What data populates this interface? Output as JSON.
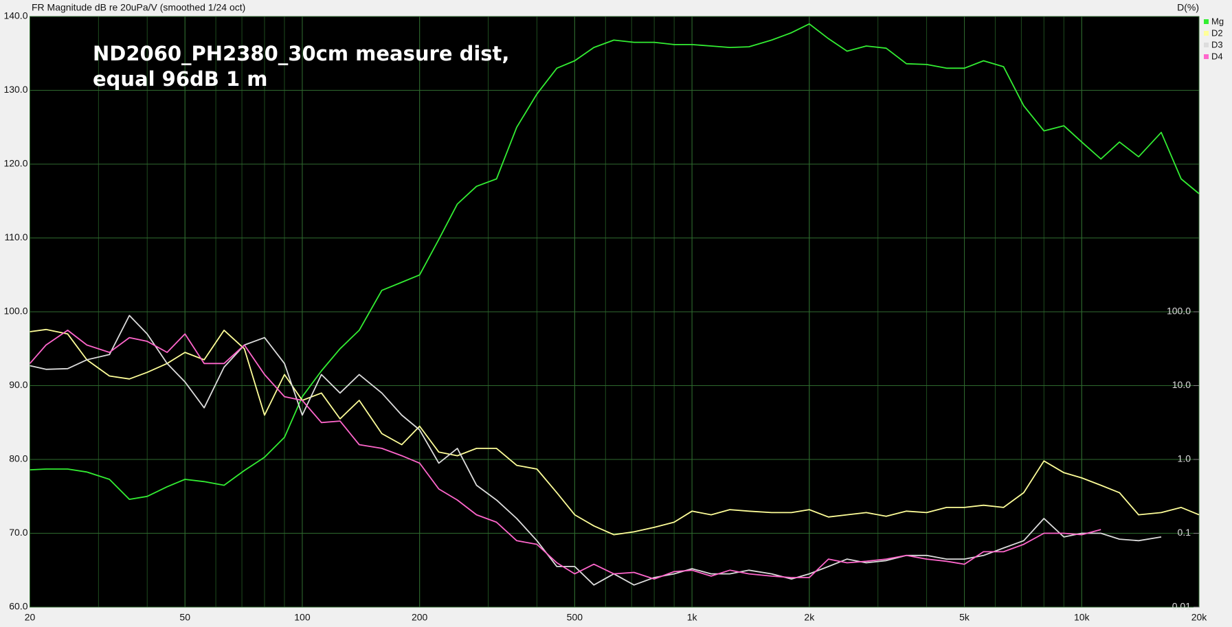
{
  "chart_data": {
    "type": "line",
    "ylabel": "FR Magnitude dB re 20uPa/V (smoothed 1/24 oct)",
    "y2label": "D(%)",
    "annotation": [
      "ND2060_PH2380_30cm measure dist,",
      "equal 96dB 1 m"
    ],
    "xscale": "log",
    "xlim": [
      20,
      20000
    ],
    "xticks": [
      20,
      50,
      100,
      200,
      500,
      {
        "value": 1000,
        "label": "1k"
      },
      {
        "value": 2000,
        "label": "2k"
      },
      {
        "value": 5000,
        "label": "5k"
      },
      {
        "value": 10000,
        "label": "10k"
      },
      {
        "value": 20000,
        "label": "20k"
      }
    ],
    "ylim": [
      60,
      140
    ],
    "yticks": [
      {
        "value": 60,
        "label": "60.0"
      },
      {
        "value": 70,
        "label": "70.0"
      },
      {
        "value": 80,
        "label": "80.0"
      },
      {
        "value": 90,
        "label": "90.0"
      },
      {
        "value": 100,
        "label": "100.0"
      },
      {
        "value": 110,
        "label": "110.0"
      },
      {
        "value": 120,
        "label": "120.0"
      },
      {
        "value": 130,
        "label": "130.0"
      },
      {
        "value": 140,
        "label": "140.0"
      }
    ],
    "y2scale": "log",
    "y2lim": [
      0.01,
      1000000
    ],
    "y2ticks": [
      0.01,
      0.1,
      {
        "value": 1,
        "label": "1.0"
      },
      {
        "value": 10,
        "label": "10.0"
      },
      {
        "value": 100,
        "label": "100.0"
      }
    ],
    "grid": true,
    "legend": "top-right",
    "x": [
      20,
      22,
      25,
      28,
      32,
      36,
      40,
      45,
      50,
      56,
      63,
      71,
      80,
      90,
      100,
      112,
      125,
      140,
      160,
      180,
      200,
      224,
      250,
      280,
      315,
      355,
      400,
      450,
      500,
      560,
      630,
      710,
      800,
      900,
      1000,
      1120,
      1250,
      1400,
      1600,
      1800,
      2000,
      2240,
      2500,
      2800,
      3150,
      3550,
      4000,
      4500,
      5000,
      5600,
      6300,
      7100,
      8000,
      9000,
      10000,
      11200,
      12500,
      14000,
      16000,
      18000,
      20000
    ],
    "series": [
      {
        "name": "Mg",
        "color": "#33ee33",
        "values": [
          78.6,
          78.7,
          78.7,
          78.3,
          77.3,
          74.6,
          75,
          76.3,
          77.3,
          77,
          76.5,
          78.5,
          80.3,
          83,
          88.5,
          92,
          95,
          97.5,
          102.9,
          104,
          105,
          109.8,
          114.6,
          117,
          118,
          125,
          129.5,
          133,
          134,
          135.8,
          136.8,
          136.5,
          136.5,
          136.2,
          136.2,
          136,
          135.8,
          135.9,
          136.8,
          137.8,
          139,
          137,
          135.3,
          136,
          135.7,
          133.6,
          133.5,
          133,
          133,
          134,
          133.2,
          127.9,
          124.5,
          125.2,
          123,
          120.7,
          123,
          121,
          124.3,
          118,
          116
        ]
      },
      {
        "name": "D2",
        "color": "#ffff99",
        "values": [
          97.3,
          97.6,
          97,
          93.5,
          91.3,
          90.9,
          91.8,
          93,
          94.5,
          93.5,
          97.5,
          95,
          86,
          91.5,
          88,
          89,
          85.5,
          88,
          83.5,
          82,
          84.5,
          81,
          80.5,
          81.5,
          81.5,
          79.2,
          78.7,
          75.5,
          72.5,
          71,
          69.8,
          70.2,
          70.8,
          71.5,
          73,
          72.5,
          73.2,
          73,
          72.8,
          72.8,
          73.2,
          72.2,
          72.5,
          72.8,
          72.3,
          73,
          72.8,
          73.5,
          73.5,
          73.8,
          73.5,
          75.5,
          79.8,
          78.2,
          77.5,
          76.5,
          75.5,
          72.5,
          72.8,
          73.5,
          72.5
        ]
      },
      {
        "name": "D3",
        "color": "#dddddd",
        "values": [
          92.7,
          92.2,
          92.3,
          93.5,
          94.2,
          99.5,
          97,
          93,
          90.5,
          87,
          92.5,
          95.5,
          96.5,
          93,
          86,
          91.5,
          89,
          91.5,
          89,
          86,
          84,
          79.5,
          81.5,
          76.5,
          74.5,
          72,
          69,
          65.5,
          65.5,
          63,
          64.5,
          63,
          64,
          64.5,
          65.2,
          64.5,
          64.5,
          65,
          64.5,
          63.8,
          64.5,
          65.5,
          66.5,
          66,
          66.3,
          67,
          67,
          66.5,
          66.5,
          67,
          68,
          69,
          72,
          69.5,
          70,
          70,
          69.2,
          69,
          69.5,
          null,
          null
        ]
      },
      {
        "name": "D4",
        "color": "#ff66cc",
        "values": [
          93,
          95.5,
          97.5,
          95.5,
          94.5,
          96.5,
          96,
          94.5,
          97,
          93,
          93,
          95.5,
          91.5,
          88.5,
          88,
          85,
          85.2,
          82,
          81.5,
          80.5,
          79.5,
          76,
          74.5,
          72.5,
          71.5,
          69,
          68.5,
          66,
          64.5,
          65.8,
          64.5,
          64.7,
          63.8,
          64.8,
          65,
          64.2,
          65,
          64.5,
          64.2,
          64,
          64,
          66.5,
          66,
          66.2,
          66.5,
          67,
          66.5,
          66.2,
          65.8,
          67.5,
          67.5,
          68.5,
          70,
          70,
          69.8,
          70.5,
          null,
          null,
          null,
          null,
          null
        ]
      }
    ]
  }
}
